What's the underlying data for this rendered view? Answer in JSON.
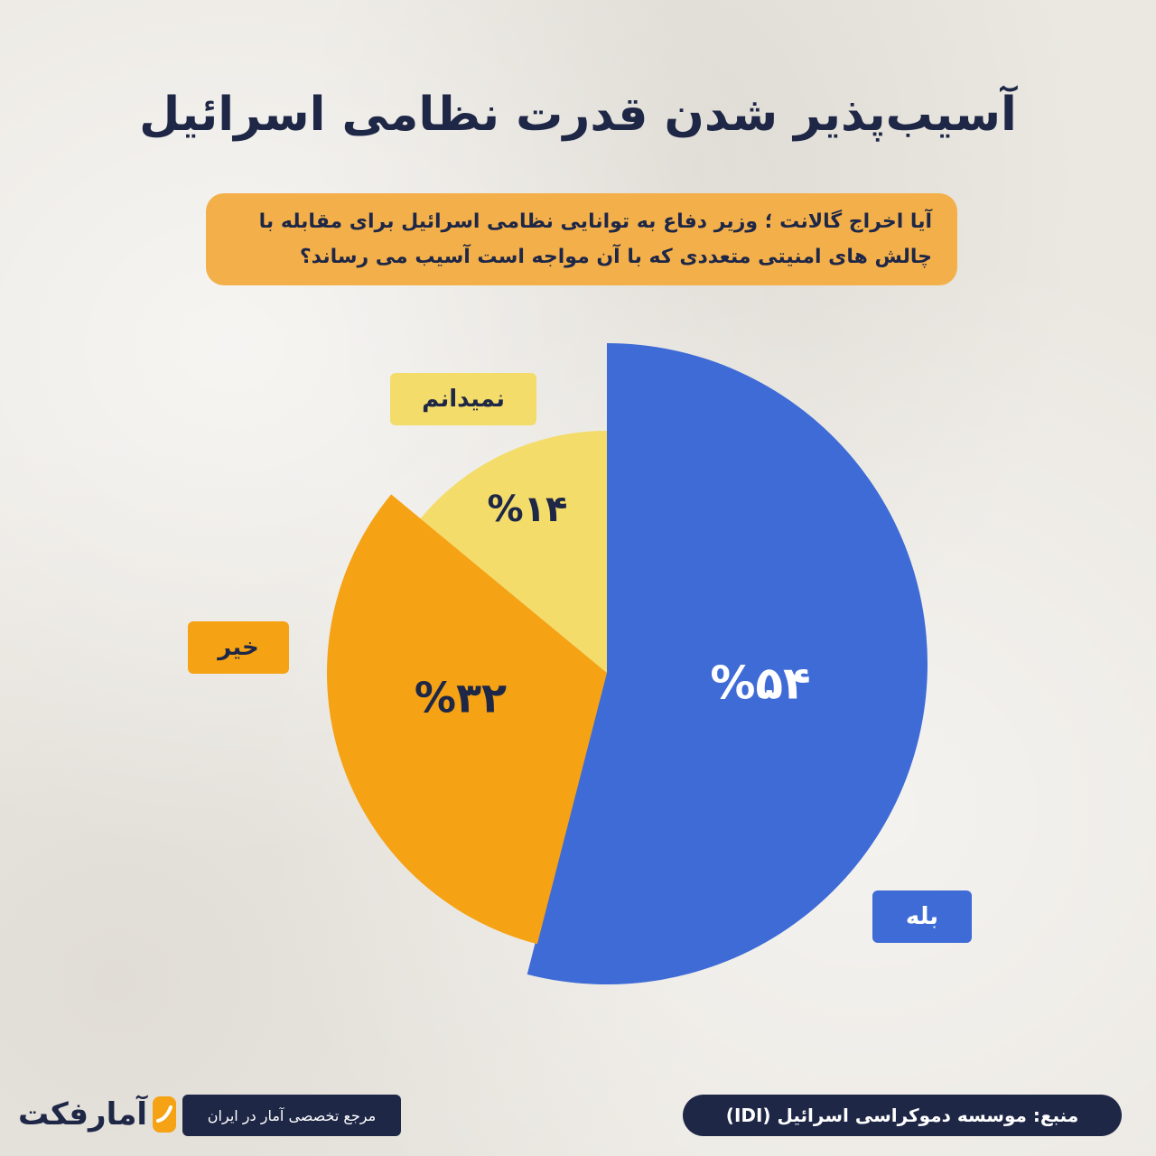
{
  "title": "آسیب‌پذیر شدن قدرت نظامی اسرائیل",
  "question": "آیا اخراج گالانت ؛ وزیر دفاع  به توانایی نظامی اسرائیل برای مقابله با چالش های امنیتی متعددی که با آن مواجه است آسیب می رساند؟",
  "chart_data": {
    "type": "pie",
    "title": "آسیب‌پذیر شدن قدرت نظامی اسرائیل",
    "slices": [
      {
        "label": "بله",
        "value": 54,
        "value_label": "%۵۴",
        "color": "#3e6bd6",
        "text_color": "#ffffff"
      },
      {
        "label": "خیر",
        "value": 32,
        "value_label": "%۳۲",
        "color": "#f5a214",
        "text_color": "#1f2747"
      },
      {
        "label": "نمیدانم",
        "value": 14,
        "value_label": "%۱۴",
        "color": "#f3dc6a",
        "text_color": "#1f2747"
      }
    ],
    "start": "12 o'clock",
    "direction": "clockwise",
    "style": "exploded-offset slices"
  },
  "labels": {
    "yes": "بله",
    "no": "خیر",
    "dont_know": "نمیدانم"
  },
  "footer": {
    "source": "منبع: موسسه دموکراسی اسرائیل (IDI)",
    "tagline": "مرجع تخصصی آمار در ایران",
    "logo_text": "آمارفکت"
  },
  "colors": {
    "navy": "#1f2747",
    "blue": "#3e6bd6",
    "orange": "#f5a214",
    "yellow": "#f3dc6a",
    "question_bg": "#f3b04a"
  },
  "icons": {
    "logo": "amarfact-logo-icon"
  }
}
